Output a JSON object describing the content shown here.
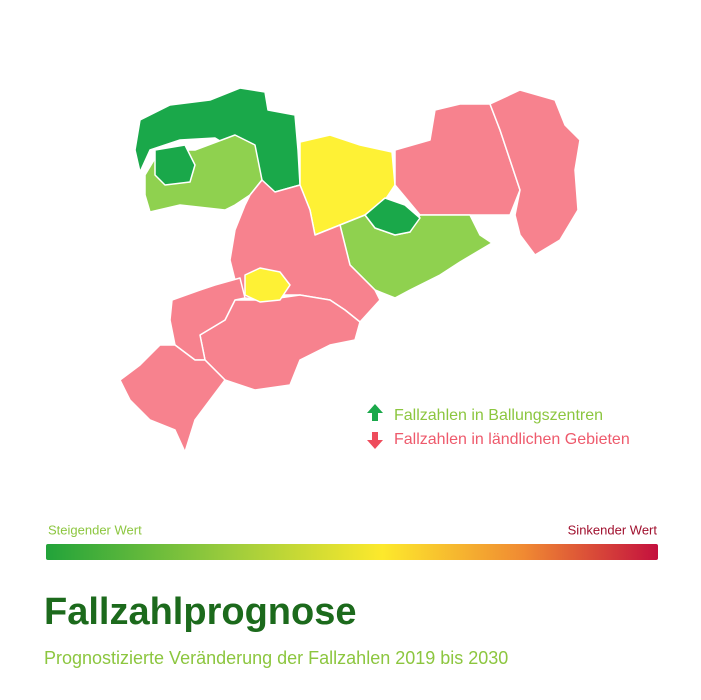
{
  "legend": {
    "items": [
      {
        "label": "Fallzahlen in Ballungszentren"
      },
      {
        "label": "Fallzahlen in ländlichen Gebieten"
      }
    ]
  },
  "scale": {
    "left_label": "Steigender Wert",
    "right_label": "Sinkender Wert"
  },
  "header": {
    "title": "Fallzahlprognose",
    "subtitle": "Prognostizierte Veränderung der Fallzahlen 2019 bis 2030"
  }
}
